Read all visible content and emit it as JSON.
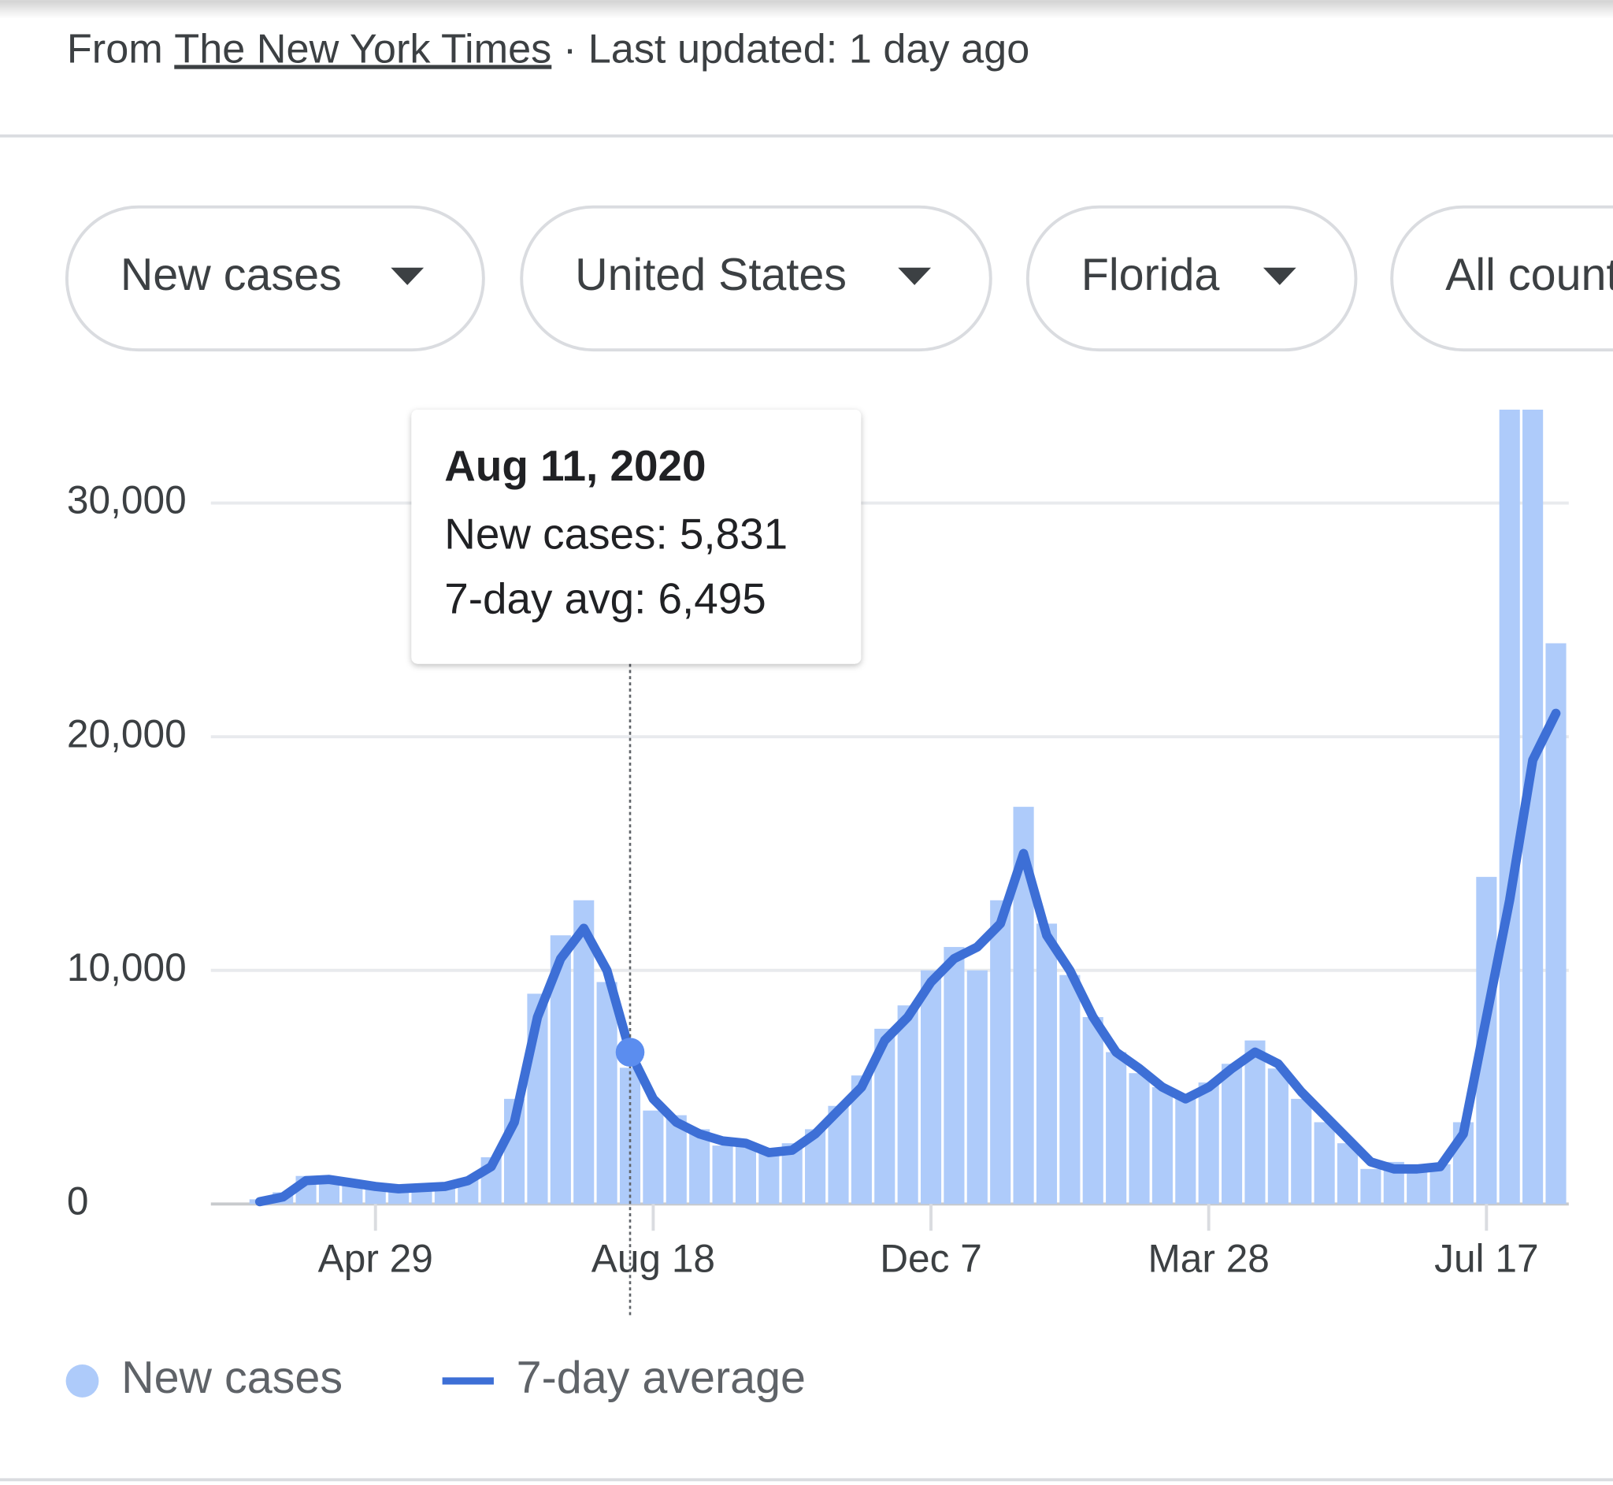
{
  "header": {
    "prefix": "From",
    "source": "The New York Times",
    "updated": "· Last updated: 1 day ago"
  },
  "chips": [
    "New cases",
    "United States",
    "Florida",
    "All counties"
  ],
  "tooltip": {
    "date": "Aug 11, 2020",
    "lines": [
      "New cases: 5,831",
      "7-day avg: 6,495"
    ]
  },
  "chart_data": {
    "type": "bar-line",
    "categories": [
      null,
      null,
      null,
      null,
      null,
      "Apr 29",
      null,
      null,
      null,
      null,
      null,
      null,
      null,
      null,
      null,
      null,
      null,
      "Aug 18",
      null,
      null,
      null,
      null,
      null,
      null,
      null,
      null,
      null,
      null,
      null,
      "Dec 7",
      null,
      null,
      null,
      null,
      null,
      null,
      null,
      null,
      null,
      null,
      null,
      "Mar 28",
      null,
      null,
      null,
      null,
      null,
      null,
      null,
      null,
      null,
      null,
      null,
      "Jul 17",
      null,
      null,
      null
    ],
    "series": [
      {
        "name": "New cases",
        "color": "#aecbfa",
        "values": [
          200,
          500,
          1200,
          1100,
          900,
          800,
          600,
          700,
          800,
          1100,
          2000,
          4500,
          9000,
          11500,
          13000,
          9500,
          5831,
          4000,
          3800,
          3200,
          2500,
          2600,
          2300,
          2600,
          3200,
          4200,
          5500,
          7500,
          8500,
          10000,
          11000,
          10000,
          13000,
          17000,
          12000,
          9800,
          8000,
          6500,
          5600,
          5000,
          4600,
          5200,
          6000,
          7000,
          5800,
          4500,
          3500,
          2600,
          1500,
          1800,
          1400,
          1700,
          3500,
          14000,
          34000,
          34000,
          24000
        ]
      },
      {
        "name": "7-day average",
        "color": "#3d6fd6",
        "values": [
          100,
          300,
          1000,
          1050,
          900,
          750,
          650,
          700,
          750,
          1000,
          1600,
          3500,
          8000,
          10500,
          11800,
          10000,
          6495,
          4500,
          3500,
          3000,
          2700,
          2600,
          2200,
          2300,
          3000,
          4000,
          5000,
          7000,
          8000,
          9500,
          10500,
          11000,
          12000,
          15000,
          11500,
          10000,
          8000,
          6500,
          5800,
          5000,
          4500,
          5000,
          5800,
          6500,
          6000,
          4800,
          3800,
          2800,
          1800,
          1500,
          1500,
          1600,
          3000,
          8000,
          13000,
          19000,
          21000
        ]
      }
    ],
    "ylim": [
      0,
      34000
    ],
    "yticks": [
      0,
      {
        "value": 10000,
        "label": "10,000"
      },
      {
        "value": 20000,
        "label": "20,000"
      },
      {
        "value": 30000,
        "label": "30,000"
      }
    ],
    "grid": true,
    "highlight": 16
  }
}
